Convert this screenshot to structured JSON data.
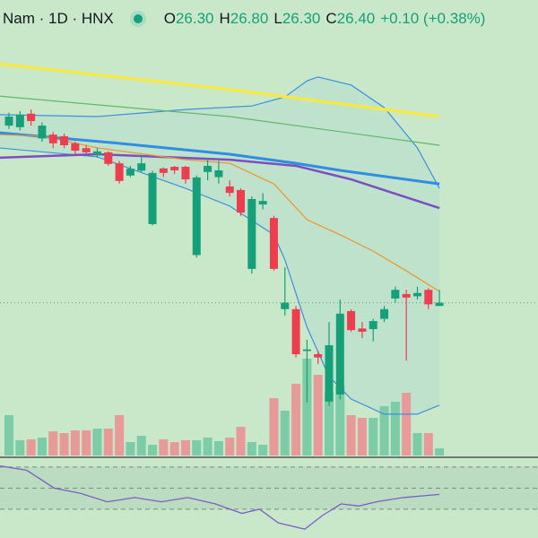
{
  "chart_data": {
    "type": "candlestick",
    "title": "Nam · 1D · HNX",
    "ohlc": [
      {
        "label": "O",
        "value": "26.30"
      },
      {
        "label": "H",
        "value": "26.80"
      },
      {
        "label": "L",
        "value": "26.30"
      },
      {
        "label": "C",
        "value": "26.40"
      }
    ],
    "change": "+0.10 (+0.38%)",
    "ylim": [
      21.6,
      35.8
    ],
    "vlim": [
      0,
      250
    ],
    "up_color": "#16a07a",
    "down_color": "#ee3d4f",
    "up_volume_color": "#7dcca8",
    "down_volume_color": "#e89a98",
    "open": [
      31.9,
      31.85,
      32.27,
      31.5,
      31.62,
      31.57,
      31.35,
      31.2,
      31.0,
      31.07,
      30.73,
      30.35,
      30.5,
      28.84,
      30.57,
      30.62,
      30.62,
      27.88,
      30.46,
      30.3,
      30.01,
      29.9,
      27.45,
      29.45,
      29.03,
      26.2,
      26.2,
      24.9,
      24.8,
      23.33,
      23.55,
      26.14,
      25.6,
      25.58,
      25.9,
      26.53,
      26.67,
      26.6,
      26.8,
      26.3
    ],
    "high": [
      32.3,
      32.35,
      32.4,
      32.0,
      31.7,
      31.65,
      31.4,
      31.3,
      31.2,
      31.1,
      30.8,
      30.65,
      30.95,
      30.5,
      30.6,
      30.65,
      30.65,
      30.35,
      30.9,
      30.8,
      30.2,
      29.95,
      29.7,
      29.8,
      29.1,
      27.5,
      26.3,
      25.25,
      24.9,
      25.8,
      26.5,
      26.2,
      25.8,
      25.9,
      26.3,
      26.9,
      26.8,
      26.9,
      26.85,
      26.8
    ],
    "low": [
      31.8,
      31.75,
      31.9,
      31.4,
      31.2,
      31.2,
      31.0,
      31.0,
      30.9,
      30.65,
      30.1,
      30.3,
      30.45,
      28.8,
      30.3,
      30.4,
      30.1,
      27.8,
      30.2,
      30.1,
      29.7,
      29.1,
      27.3,
      29.3,
      27.4,
      26.0,
      24.7,
      23.3,
      24.5,
      23.2,
      23.4,
      25.5,
      25.3,
      25.2,
      25.8,
      26.4,
      24.6,
      26.5,
      26.2,
      26.3
    ],
    "close": [
      32.18,
      32.24,
      32.04,
      31.9,
      31.35,
      31.29,
      31.12,
      31.07,
      31.1,
      30.71,
      30.18,
      30.56,
      30.73,
      30.43,
      30.43,
      30.51,
      30.23,
      30.29,
      30.65,
      30.51,
      29.81,
      29.2,
      29.62,
      29.56,
      27.45,
      26.4,
      24.8,
      24.95,
      24.7,
      25.08,
      26.06,
      25.55,
      25.5,
      25.83,
      26.2,
      26.8,
      26.56,
      26.7,
      26.35,
      26.4
    ],
    "volume": [
      45,
      17,
      18,
      20,
      27,
      25,
      28,
      28,
      30,
      30,
      45,
      15,
      22,
      12,
      18,
      15,
      17,
      17,
      20,
      16,
      20,
      32,
      15,
      12,
      64,
      50,
      80,
      108,
      90,
      70,
      78,
      45,
      42,
      42,
      55,
      60,
      70,
      25,
      25,
      8
    ],
    "bands": {
      "color": "#3d8fe0",
      "fill": "#b9dfd0",
      "upper": {
        "x": [
          -1,
          8,
          16,
          22,
          25,
          27,
          28,
          31,
          34,
          37,
          39
        ],
        "values": [
          32.24,
          32.18,
          32.4,
          32.51,
          32.79,
          33.29,
          33.41,
          33.16,
          32.46,
          31.21,
          29.95
        ]
      },
      "lower": {
        "x": [
          -1,
          8,
          16,
          20,
          24,
          25,
          27,
          29,
          31,
          34,
          37,
          39
        ],
        "values": [
          31.21,
          30.93,
          29.95,
          29.4,
          28.51,
          27.73,
          25.64,
          24.11,
          23.41,
          22.94,
          22.94,
          23.22
        ]
      }
    },
    "series": [
      {
        "color": "#f5e84a",
        "width": 3.5,
        "x": [
          -1,
          20,
          39
        ],
        "values": [
          33.82,
          33.02,
          32.18
        ]
      },
      {
        "color": "#5fb86a",
        "width": 1.2,
        "x": [
          -1,
          20,
          39
        ],
        "values": [
          32.82,
          32.18,
          31.29
        ]
      },
      {
        "color": "#2f8de4",
        "width": 3,
        "x": [
          -1,
          10,
          20,
          26,
          30,
          39
        ],
        "values": [
          31.68,
          31.35,
          31.01,
          30.73,
          30.51,
          30.09
        ]
      },
      {
        "color": "#7b4fbf",
        "width": 2.5,
        "x": [
          -1,
          8,
          20,
          26,
          31,
          39
        ],
        "values": [
          30.9,
          31.01,
          30.84,
          30.65,
          30.23,
          29.34
        ]
      },
      {
        "color": "#f0952a",
        "width": 1.2,
        "x": [
          -1,
          3,
          8,
          16,
          20,
          24,
          27,
          30,
          33,
          36,
          39
        ],
        "values": [
          31.62,
          31.57,
          31.21,
          30.84,
          30.73,
          30.09,
          28.98,
          28.51,
          28.0,
          27.39,
          26.75
        ]
      }
    ],
    "rsi": {
      "ylim": [
        2.6,
        75
      ],
      "levels": [
        70,
        50,
        30
      ],
      "color": "#7b5fc8",
      "x": [
        -0.8,
        1.6,
        4.1,
        6.5,
        8.9,
        11.4,
        13.8,
        16.2,
        18.7,
        21.1,
        22.7,
        24.4,
        26.8,
        28.4,
        30.1,
        31.7,
        33.3,
        35.7,
        39
      ],
      "values": [
        71,
        67,
        50,
        45,
        37,
        41,
        37,
        41,
        35,
        26,
        30,
        17,
        11,
        24,
        35,
        33,
        37,
        41,
        44
      ]
    }
  }
}
